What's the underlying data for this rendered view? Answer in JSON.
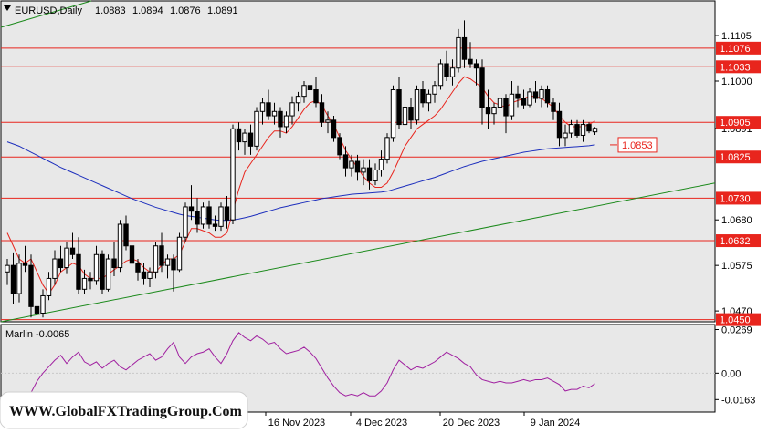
{
  "header": {
    "symbol": "EURUSD,Daily",
    "open": "1.0883",
    "high": "1.0894",
    "low": "1.0876",
    "close": "1.0891"
  },
  "watermark": "WWW.GlobalFXTradingGroup.Com",
  "colors": {
    "background": "#ffffff",
    "plot_bg": "#e8e8e8",
    "level_red": "#e8251d",
    "ma_red": "#e8251d",
    "ma_blue": "#1d2fbd",
    "trend_green": "#1c8a1c",
    "oscillator": "#a020a0"
  },
  "chart_data": [
    {
      "type": "candlestick",
      "title": "EURUSD,Daily",
      "y_ticks": [
        "1.1105",
        "1.1000",
        "1.0891",
        "1.0680",
        "1.0575",
        "1.0470"
      ],
      "x_ticks": [
        "16 Nov 2023",
        "4 Dec 2023",
        "20 Dec 2023",
        "9 Jan 2024"
      ],
      "ylim": [
        1.0445,
        1.1185
      ],
      "levels": [
        "1.1076",
        "1.1033",
        "1.0905",
        "1.0825",
        "1.0730",
        "1.0632",
        "1.0450"
      ],
      "annotation": "1.0853",
      "candles": [
        [
          1.056,
          1.059,
          1.053,
          1.0575
        ],
        [
          1.0575,
          1.0605,
          1.0485,
          1.051
        ],
        [
          1.051,
          1.06,
          1.049,
          1.058
        ],
        [
          1.058,
          1.062,
          1.056,
          1.0575
        ],
        [
          1.0575,
          1.06,
          1.0455,
          1.048
        ],
        [
          1.048,
          1.0515,
          1.045,
          1.0465
        ],
        [
          1.0465,
          1.052,
          1.0455,
          1.0505
        ],
        [
          1.0505,
          1.056,
          1.0495,
          1.0545
        ],
        [
          1.0545,
          1.061,
          1.053,
          1.059
        ],
        [
          1.059,
          1.062,
          1.056,
          1.057
        ],
        [
          1.057,
          1.063,
          1.0555,
          1.0615
        ],
        [
          1.0615,
          1.065,
          1.059,
          1.06
        ],
        [
          1.06,
          1.064,
          1.051,
          1.052
        ],
        [
          1.052,
          1.0565,
          1.051,
          1.0545
        ],
        [
          1.0545,
          1.056,
          1.052,
          1.054
        ],
        [
          1.054,
          1.062,
          1.053,
          1.06
        ],
        [
          1.06,
          1.061,
          1.051,
          1.052
        ],
        [
          1.052,
          1.06,
          1.0515,
          1.059
        ],
        [
          1.059,
          1.063,
          1.055,
          1.057
        ],
        [
          1.057,
          1.068,
          1.056,
          1.067
        ],
        [
          1.067,
          1.069,
          1.061,
          1.062
        ],
        [
          1.062,
          1.064,
          1.056,
          1.058
        ],
        [
          1.058,
          1.059,
          1.054,
          1.056
        ],
        [
          1.056,
          1.058,
          1.053,
          1.0545
        ],
        [
          1.0545,
          1.057,
          1.0525,
          1.056
        ],
        [
          1.056,
          1.063,
          1.0545,
          1.062
        ],
        [
          1.062,
          1.065,
          1.056,
          1.0575
        ],
        [
          1.0575,
          1.06,
          1.0545,
          1.059
        ],
        [
          1.059,
          1.06,
          1.0515,
          1.0565
        ],
        [
          1.0565,
          1.065,
          1.056,
          1.064
        ],
        [
          1.064,
          1.072,
          1.063,
          1.071
        ],
        [
          1.071,
          1.076,
          1.068,
          1.07
        ],
        [
          1.07,
          1.073,
          1.065,
          1.067
        ],
        [
          1.067,
          1.072,
          1.066,
          1.071
        ],
        [
          1.071,
          1.0725,
          1.066,
          1.067
        ],
        [
          1.067,
          1.069,
          1.0655,
          1.0665
        ],
        [
          1.0665,
          1.072,
          1.0655,
          1.071
        ],
        [
          1.071,
          1.0735,
          1.066,
          1.068
        ],
        [
          1.068,
          1.09,
          1.067,
          1.089
        ],
        [
          1.089,
          1.0905,
          1.084,
          1.086
        ],
        [
          1.086,
          1.089,
          1.083,
          1.088
        ],
        [
          1.088,
          1.09,
          1.083,
          1.085
        ],
        [
          1.085,
          1.094,
          1.084,
          1.093
        ],
        [
          1.093,
          1.096,
          1.09,
          1.095
        ],
        [
          1.095,
          1.098,
          1.091,
          1.092
        ],
        [
          1.092,
          1.095,
          1.09,
          1.093
        ],
        [
          1.093,
          1.094,
          1.087,
          1.0895
        ],
        [
          1.0895,
          1.093,
          1.088,
          1.092
        ],
        [
          1.092,
          1.0965,
          1.09,
          1.095
        ],
        [
          1.095,
          1.0975,
          1.093,
          1.0965
        ],
        [
          1.0965,
          1.1,
          1.095,
          1.099
        ],
        [
          1.099,
          1.101,
          1.097,
          1.098
        ],
        [
          1.098,
          1.101,
          1.094,
          1.095
        ],
        [
          1.095,
          1.097,
          1.0895,
          1.0905
        ],
        [
          1.0905,
          1.093,
          1.088,
          1.091
        ],
        [
          1.091,
          1.092,
          1.086,
          1.087
        ],
        [
          1.087,
          1.088,
          1.082,
          1.083
        ],
        [
          1.083,
          1.085,
          1.078,
          1.08
        ],
        [
          1.08,
          1.083,
          1.078,
          1.0815
        ],
        [
          1.0815,
          1.083,
          1.077,
          1.079
        ],
        [
          1.079,
          1.082,
          1.076,
          1.08
        ],
        [
          1.08,
          1.082,
          1.075,
          1.077
        ],
        [
          1.077,
          1.081,
          1.076,
          1.0795
        ],
        [
          1.0795,
          1.084,
          1.078,
          1.082
        ],
        [
          1.082,
          1.088,
          1.081,
          1.087
        ],
        [
          1.087,
          1.099,
          1.086,
          1.098
        ],
        [
          1.098,
          1.101,
          1.089,
          1.09
        ],
        [
          1.09,
          1.096,
          1.089,
          1.094
        ],
        [
          1.094,
          1.096,
          1.089,
          1.091
        ],
        [
          1.091,
          1.099,
          1.09,
          1.098
        ],
        [
          1.098,
          1.1,
          1.094,
          1.095
        ],
        [
          1.095,
          1.098,
          1.093,
          1.097
        ],
        [
          1.097,
          1.1,
          1.095,
          1.099
        ],
        [
          1.099,
          1.105,
          1.098,
          1.104
        ],
        [
          1.104,
          1.107,
          1.1,
          1.101
        ],
        [
          1.101,
          1.105,
          1.099,
          1.103
        ],
        [
          1.103,
          1.112,
          1.102,
          1.11
        ],
        [
          1.11,
          1.114,
          1.103,
          1.105
        ],
        [
          1.105,
          1.109,
          1.103,
          1.104
        ],
        [
          1.104,
          1.105,
          1.099,
          1.103
        ],
        [
          1.103,
          1.105,
          1.09,
          1.094
        ],
        [
          1.094,
          1.098,
          1.089,
          1.0925
        ],
        [
          1.0925,
          1.095,
          1.09,
          1.094
        ],
        [
          1.094,
          1.098,
          1.092,
          1.096
        ],
        [
          1.096,
          1.097,
          1.088,
          1.092
        ],
        [
          1.092,
          1.1,
          1.091,
          1.097
        ],
        [
          1.097,
          1.099,
          1.094,
          1.096
        ],
        [
          1.096,
          1.098,
          1.0935,
          1.0945
        ],
        [
          1.0945,
          1.0985,
          1.094,
          1.0975
        ],
        [
          1.0975,
          1.1,
          1.095,
          1.096
        ],
        [
          1.096,
          1.099,
          1.094,
          1.098
        ],
        [
          1.098,
          1.099,
          1.094,
          1.095
        ],
        [
          1.095,
          1.096,
          1.091,
          1.093
        ],
        [
          1.093,
          1.095,
          1.085,
          1.087
        ],
        [
          1.087,
          1.09,
          1.085,
          1.088
        ],
        [
          1.088,
          1.091,
          1.087,
          1.09
        ],
        [
          1.09,
          1.091,
          1.087,
          1.0875
        ],
        [
          1.0875,
          1.091,
          1.086,
          1.09
        ],
        [
          1.09,
          1.0905,
          1.088,
          1.0885
        ],
        [
          1.0883,
          1.0894,
          1.0876,
          1.0891
        ]
      ],
      "ma_fast": [
        1.065,
        1.062,
        1.059,
        1.058,
        1.059,
        1.056,
        1.053,
        1.051,
        1.053,
        1.056,
        1.057,
        1.058,
        1.0575,
        1.0555,
        1.0545,
        1.0545,
        1.0545,
        1.0555,
        1.0565,
        1.0575,
        1.0585,
        1.059,
        1.0585,
        1.057,
        1.056,
        1.056,
        1.0575,
        1.059,
        1.059,
        1.06,
        1.063,
        1.066,
        1.066,
        1.0655,
        1.065,
        1.064,
        1.064,
        1.065,
        1.07,
        1.075,
        1.079,
        1.081,
        1.083,
        1.085,
        1.087,
        1.0885,
        1.0885,
        1.088,
        1.0895,
        1.0915,
        1.0935,
        1.095,
        1.0955,
        1.0945,
        1.092,
        1.09,
        1.087,
        1.084,
        1.082,
        1.08,
        1.078,
        1.0765,
        1.0755,
        1.0755,
        1.0765,
        1.079,
        1.082,
        1.085,
        1.087,
        1.089,
        1.09,
        1.091,
        1.092,
        1.0935,
        1.0955,
        1.0975,
        1.0995,
        1.101,
        1.1005,
        1.0995,
        1.0985,
        1.0965,
        1.095,
        1.0945,
        1.094,
        1.095,
        1.0955,
        1.096,
        1.0965,
        1.0965,
        1.096,
        1.095,
        1.094,
        1.092,
        1.0905,
        1.0895,
        1.0895,
        1.0895,
        1.09,
        1.0908
      ],
      "ma_slow": [
        1.086,
        1.0855,
        1.085,
        1.0843,
        1.0836,
        1.0829,
        1.0822,
        1.0815,
        1.0808,
        1.0801,
        1.0795,
        1.0789,
        1.0783,
        1.0777,
        1.0771,
        1.0765,
        1.0759,
        1.0753,
        1.0747,
        1.0741,
        1.0735,
        1.0729,
        1.0724,
        1.0719,
        1.0714,
        1.0709,
        1.0705,
        1.0701,
        1.0697,
        1.0693,
        1.069,
        1.0688,
        1.0686,
        1.0684,
        1.0682,
        1.068,
        1.0679,
        1.0679,
        1.068,
        1.0682,
        1.0685,
        1.0688,
        1.0692,
        1.0696,
        1.07,
        1.0704,
        1.0708,
        1.0711,
        1.0714,
        1.0717,
        1.072,
        1.0723,
        1.0726,
        1.0729,
        1.0731,
        1.0733,
        1.0735,
        1.0737,
        1.0739,
        1.074,
        1.0741,
        1.0742,
        1.0743,
        1.0744,
        1.0746,
        1.075,
        1.0754,
        1.0758,
        1.0762,
        1.0766,
        1.077,
        1.0774,
        1.0778,
        1.0783,
        1.0788,
        1.0793,
        1.0798,
        1.0803,
        1.0807,
        1.0811,
        1.0815,
        1.0818,
        1.0821,
        1.0824,
        1.0827,
        1.083,
        1.0833,
        1.0836,
        1.0838,
        1.084,
        1.0842,
        1.0844,
        1.0845,
        1.0846,
        1.0847,
        1.0848,
        1.0849,
        1.085,
        1.0851,
        1.0853
      ],
      "trendline": {
        "start": 1.0445,
        "end": 1.0765
      }
    },
    {
      "type": "line",
      "title": "Marlin -0.0065",
      "series": [
        {
          "values": [
            -0.02,
            -0.025,
            -0.03,
            -0.027,
            -0.012,
            -0.005,
            0.0,
            0.004,
            0.008,
            0.011,
            0.006,
            0.01,
            0.013,
            0.007,
            0.005,
            0.007,
            0.003,
            0.006,
            0.008,
            0.004,
            0.002,
            0.005,
            0.008,
            0.01,
            0.012,
            0.008,
            0.01,
            0.015,
            0.019,
            0.01,
            0.006,
            0.01,
            0.012,
            0.013,
            0.015,
            0.01,
            0.006,
            0.012,
            0.02,
            0.025,
            0.022,
            0.02,
            0.023,
            0.021,
            0.018,
            0.019,
            0.015,
            0.012,
            0.013,
            0.014,
            0.016,
            0.013,
            0.009,
            0.003,
            -0.003,
            -0.008,
            -0.012,
            -0.014,
            -0.013,
            -0.014,
            -0.012,
            -0.014,
            -0.014,
            -0.011,
            -0.006,
            0.002,
            0.008,
            0.005,
            0.002,
            0.004,
            0.003,
            0.005,
            0.007,
            0.01,
            0.013,
            0.011,
            0.009,
            0.006,
            0.004,
            -0.001,
            -0.004,
            -0.005,
            -0.006,
            -0.005,
            -0.006,
            -0.006,
            -0.005,
            -0.004,
            -0.005,
            -0.004,
            -0.004,
            -0.003,
            -0.005,
            -0.007,
            -0.011,
            -0.01,
            -0.01,
            -0.008,
            -0.009,
            -0.0065
          ]
        }
      ],
      "y_ticks": [
        "0.0269",
        "0.00",
        "-0.0163"
      ],
      "ylim": [
        -0.024,
        0.03
      ]
    }
  ]
}
